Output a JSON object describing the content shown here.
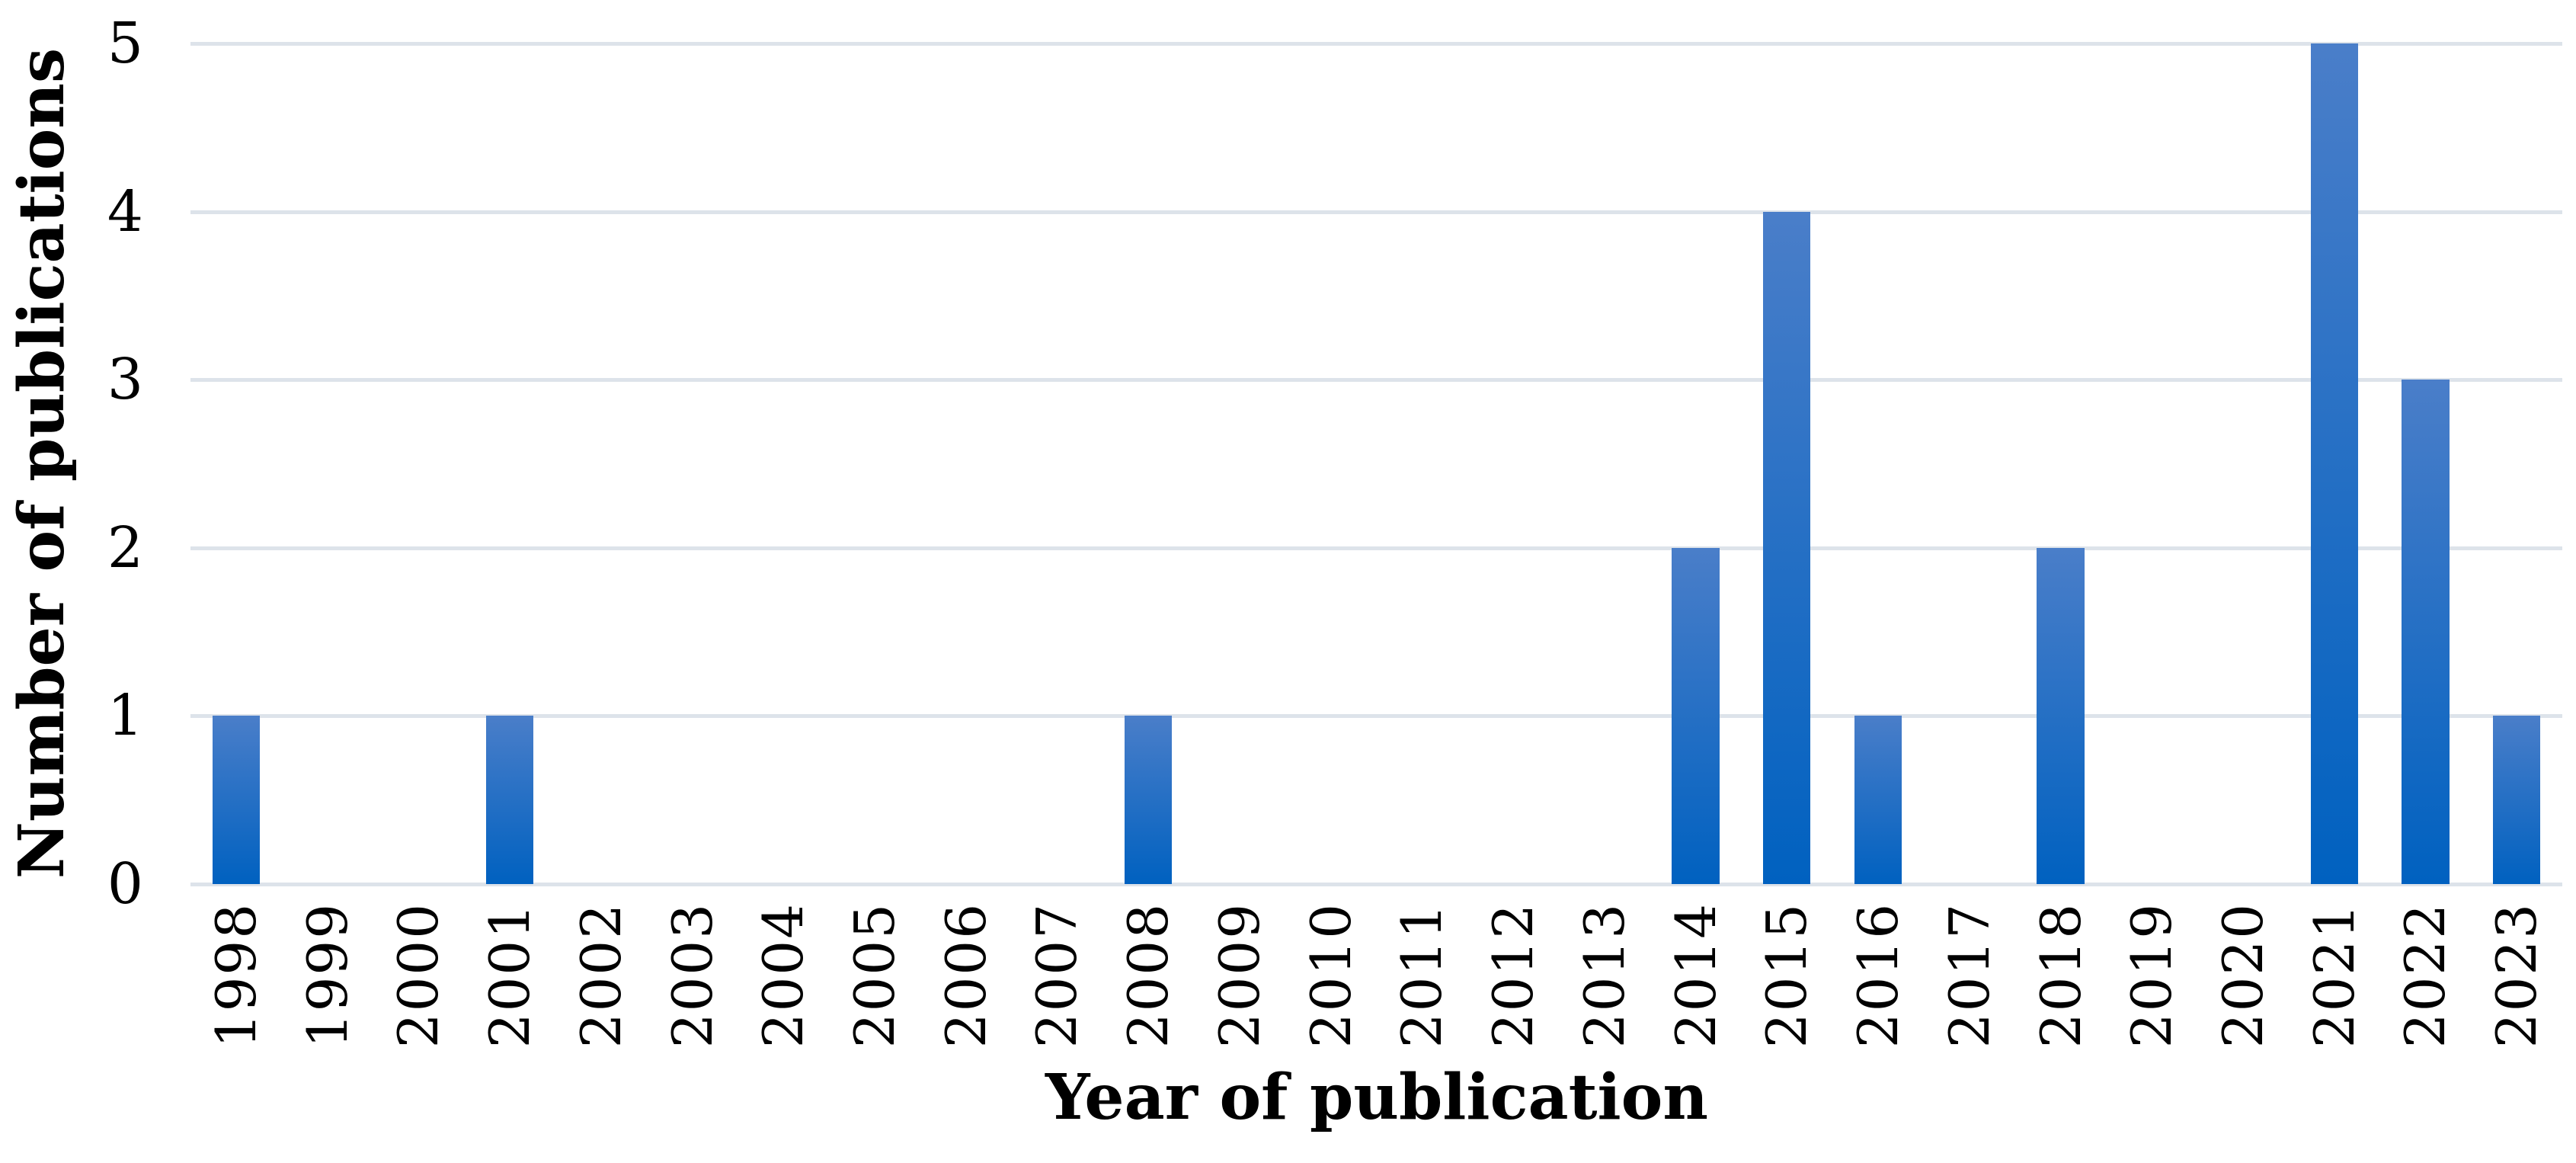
{
  "figure": {
    "background_color": "#ffffff",
    "gridline_color": "#dde3ea",
    "bar_gradient_top": "#4a7ec9",
    "bar_gradient_bottom": "#0061c0",
    "text_color": "#000000",
    "x_tick_rotation_deg": 90
  },
  "chart_data": {
    "type": "bar",
    "title": "",
    "xlabel": "Year of publication",
    "ylabel": "Number of publications",
    "categories": [
      "1998",
      "1999",
      "2000",
      "2001",
      "2002",
      "2003",
      "2004",
      "2005",
      "2006",
      "2007",
      "2008",
      "2009",
      "2010",
      "2011",
      "2012",
      "2013",
      "2014",
      "2015",
      "2016",
      "2017",
      "2018",
      "2019",
      "2020",
      "2021",
      "2022",
      "2023"
    ],
    "values": [
      1,
      0,
      0,
      1,
      0,
      0,
      0,
      0,
      0,
      0,
      1,
      0,
      0,
      0,
      0,
      0,
      2,
      4,
      1,
      0,
      2,
      0,
      0,
      5,
      3,
      1
    ],
    "ylim": [
      0,
      5
    ],
    "yticks": [
      0,
      1,
      2,
      3,
      4,
      5
    ],
    "grid": "horizontal",
    "legend_position": "none"
  }
}
